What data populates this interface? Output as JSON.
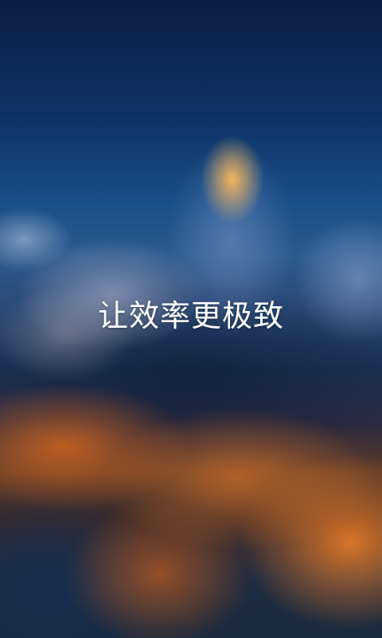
{
  "splash": {
    "background": "blurred-night-city-skyline",
    "tagline": "让效率更极致"
  }
}
